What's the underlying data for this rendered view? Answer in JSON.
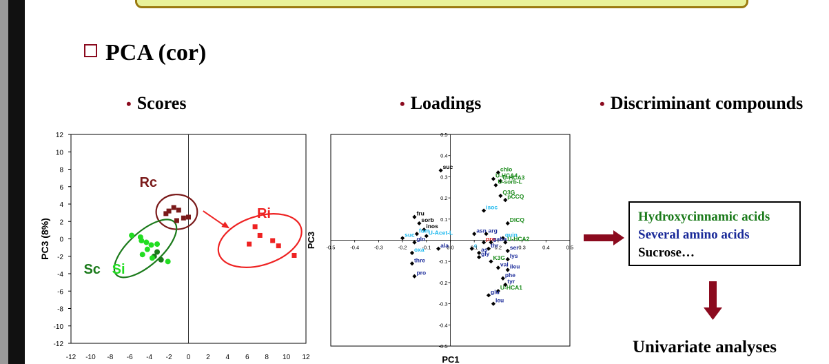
{
  "slide": {
    "title": "PCA (cor)",
    "scores_heading": "Scores",
    "loadings_heading": "Loadings",
    "discriminant_heading": "Discriminant compounds",
    "discriminant_list": [
      "Hydroxycinnamic acids",
      "Several amino acids",
      "Sucrose…"
    ],
    "univariate": "Univariate analyses"
  },
  "colors": {
    "accent": "#8b0a1e",
    "Rc": "#7a1a1a",
    "Ri": "#ee2222",
    "Sc": "#1a7a1a",
    "Si": "#22dd22",
    "hydroxycinnamic": "#1a7a1a",
    "amino": "#1a2a99",
    "loading_black": "#000000",
    "loading_cyan": "#1ab8ee",
    "loading_blue": "#1a2a99",
    "loading_green": "#1a8a1a",
    "loading_red": "#dd1111"
  },
  "chart_data": [
    {
      "type": "scatter",
      "chart": "scores",
      "xlabel": "",
      "ylabel": "PC3 (8%)",
      "xlim": [
        -12,
        12
      ],
      "ylim": [
        -12,
        12
      ],
      "xticks": [
        -12,
        -10,
        -8,
        -6,
        -4,
        -2,
        0,
        2,
        4,
        6,
        8,
        10,
        12
      ],
      "yticks": [
        -12,
        -10,
        -8,
        -6,
        -4,
        -2,
        0,
        2,
        4,
        6,
        8,
        10,
        12
      ],
      "group_labels": [
        {
          "text": "Rc",
          "x": -5,
          "y": 6,
          "color": "#7a1a1a"
        },
        {
          "text": "Ri",
          "x": 7,
          "y": 2.4,
          "color": "#ee2222"
        },
        {
          "text": "Sc",
          "x": -10.7,
          "y": -4,
          "color": "#1a7a1a"
        },
        {
          "text": "Si",
          "x": -7.8,
          "y": -4,
          "color": "#22dd22"
        }
      ],
      "series": [
        {
          "name": "Rc",
          "color": "#7a1a1a",
          "shape": "square",
          "points": [
            [
              -2,
              3.2
            ],
            [
              -1.5,
              3.6
            ],
            [
              -1,
              3.3
            ],
            [
              -0.5,
              2.4
            ],
            [
              -1.2,
              2.1
            ],
            [
              0,
              2.5
            ],
            [
              -2.3,
              2.9
            ]
          ]
        },
        {
          "name": "Ri",
          "color": "#ee2222",
          "shape": "square",
          "points": [
            [
              6.8,
              1.4
            ],
            [
              7.3,
              0.4
            ],
            [
              6.2,
              -0.6
            ],
            [
              8.6,
              -0.2
            ],
            [
              9.2,
              -0.8
            ],
            [
              10.8,
              -1.9
            ]
          ]
        },
        {
          "name": "Sc",
          "color": "#1a7a1a",
          "shape": "circle",
          "points": [
            [
              -3.5,
              -2.0
            ],
            [
              -2.8,
              -2.4
            ],
            [
              -3.2,
              -1.5
            ]
          ]
        },
        {
          "name": "Si",
          "color": "#22dd22",
          "shape": "circle",
          "points": [
            [
              -5.8,
              0.4
            ],
            [
              -4.8,
              -0.2
            ],
            [
              -4.2,
              -1.2
            ],
            [
              -3.8,
              -0.7
            ],
            [
              -3.2,
              -0.6
            ],
            [
              -4.7,
              -1.8
            ],
            [
              -3.7,
              -2.2
            ],
            [
              -2.1,
              -2.6
            ],
            [
              -4.9,
              0.2
            ],
            [
              -4.3,
              -0.4
            ]
          ]
        }
      ],
      "ellipses": [
        {
          "group": "Rc",
          "color": "#7a1a1a",
          "cx": -1.2,
          "cy": 3.1,
          "rx": 2.1,
          "ry": 2.0,
          "angle": 0
        },
        {
          "group": "Ri",
          "color": "#ee2222",
          "cx": 7.3,
          "cy": -0.2,
          "rx": 4.4,
          "ry": 2.8,
          "angle": -18
        },
        {
          "group": "Sc Si",
          "color": "#1a7a1a",
          "cx": -4.4,
          "cy": -1.1,
          "rx": 4.0,
          "ry": 1.9,
          "angle": -42
        }
      ],
      "arrow": {
        "from": [
          1.5,
          3.2
        ],
        "to": [
          4.2,
          1.2
        ],
        "color": "#ee2222"
      }
    },
    {
      "type": "scatter",
      "chart": "loadings",
      "xlabel": "PC1",
      "ylabel": "PC3",
      "xlim": [
        -0.5,
        0.5
      ],
      "ylim": [
        -0.5,
        0.5
      ],
      "xticks": [
        -0.5,
        -0.4,
        -0.3,
        -0.2,
        -0.1,
        0.0,
        0.1,
        0.2,
        0.3,
        0.4,
        0.5
      ],
      "xtick_labels": [
        "-0.5",
        "-0.4",
        "-0.3",
        "-0.2",
        "-0.1",
        "0.0",
        "0.1",
        "0.2",
        "0.3",
        "0.4",
        "0.5"
      ],
      "yticks": [
        0.5,
        0.4,
        0.3,
        0.2,
        0.1,
        -0.1,
        -0.2,
        -0.3,
        -0.4,
        -0.5
      ],
      "ytick_labels": [
        "0.5",
        "0.4",
        "0.3",
        "0.2",
        "0.1",
        "-0.1",
        "-0.2",
        "-0.3",
        "-0.4",
        "-0.5"
      ],
      "points": [
        {
          "label": "suc",
          "x": -0.04,
          "y": 0.33,
          "color": "#000000"
        },
        {
          "label": "chlo",
          "x": 0.2,
          "y": 0.32,
          "color": "#1a8a1a"
        },
        {
          "label": "U-HCA4",
          "x": 0.18,
          "y": 0.29,
          "color": "#1a8a1a"
        },
        {
          "label": "U-HCA3",
          "x": 0.21,
          "y": 0.28,
          "color": "#1a8a1a"
        },
        {
          "label": "U-sorb-L",
          "x": 0.19,
          "y": 0.26,
          "color": "#1a8a1a"
        },
        {
          "label": "Q3G",
          "x": 0.21,
          "y": 0.21,
          "color": "#1a8a1a"
        },
        {
          "label": "pCCQ",
          "x": 0.23,
          "y": 0.19,
          "color": "#1a8a1a"
        },
        {
          "label": "isoc",
          "x": 0.14,
          "y": 0.14,
          "color": "#1ab8ee"
        },
        {
          "label": "fru",
          "x": -0.15,
          "y": 0.11,
          "color": "#000000"
        },
        {
          "label": "sorb",
          "x": -0.13,
          "y": 0.08,
          "color": "#000000"
        },
        {
          "label": "inos",
          "x": -0.11,
          "y": 0.05,
          "color": "#000000"
        },
        {
          "label": "DICQ",
          "x": 0.24,
          "y": 0.08,
          "color": "#1a8a1a"
        },
        {
          "label": "fum",
          "x": -0.14,
          "y": 0.03,
          "color": "#1ab8ee"
        },
        {
          "label": "U-Acet-L",
          "x": -0.1,
          "y": 0.02,
          "color": "#1ab8ee"
        },
        {
          "label": "suc",
          "x": -0.2,
          "y": 0.01,
          "color": "#1ab8ee"
        },
        {
          "label": "asn",
          "x": 0.1,
          "y": 0.03,
          "color": "#1a2a99"
        },
        {
          "label": "arg",
          "x": 0.15,
          "y": 0.03,
          "color": "#1a2a99"
        },
        {
          "label": "quin",
          "x": 0.22,
          "y": 0.01,
          "color": "#1ab8ee"
        },
        {
          "label": "gln",
          "x": -0.15,
          "y": -0.01,
          "color": "#1a2a99"
        },
        {
          "label": "pro",
          "x": 0.14,
          "y": -0.01,
          "color": "#dd1111"
        },
        {
          "label": "gaba",
          "x": 0.17,
          "y": -0.01,
          "color": "#1a2a99"
        },
        {
          "label": "U-HCA2",
          "x": 0.23,
          "y": -0.01,
          "color": "#1a8a1a"
        },
        {
          "label": "oxa",
          "x": -0.16,
          "y": -0.06,
          "color": "#1ab8ee"
        },
        {
          "label": "ala",
          "x": -0.05,
          "y": -0.04,
          "color": "#1a2a99"
        },
        {
          "label": "c",
          "x": 0.09,
          "y": -0.04,
          "color": "#1ab8ee"
        },
        {
          "label": "thr",
          "x": 0.16,
          "y": -0.04,
          "color": "#1a2a99"
        },
        {
          "label": "ser",
          "x": 0.24,
          "y": -0.05,
          "color": "#1a2a99"
        },
        {
          "label": "as",
          "x": 0.12,
          "y": -0.06,
          "color": "#1a2a99"
        },
        {
          "label": "gly",
          "x": 0.12,
          "y": -0.08,
          "color": "#1a2a99"
        },
        {
          "label": "lys",
          "x": 0.24,
          "y": -0.09,
          "color": "#1a2a99"
        },
        {
          "label": "K3G",
          "x": 0.17,
          "y": -0.1,
          "color": "#1a8a1a"
        },
        {
          "label": "thre",
          "x": -0.16,
          "y": -0.11,
          "color": "#1a2a99"
        },
        {
          "label": "val",
          "x": 0.2,
          "y": -0.13,
          "color": "#1a2a99"
        },
        {
          "label": "ileu",
          "x": 0.24,
          "y": -0.14,
          "color": "#1a2a99"
        },
        {
          "label": "pro",
          "x": -0.15,
          "y": -0.17,
          "color": "#1a2a99"
        },
        {
          "label": "phe",
          "x": 0.22,
          "y": -0.18,
          "color": "#1a2a99"
        },
        {
          "label": "tyr",
          "x": 0.23,
          "y": -0.21,
          "color": "#1a2a99"
        },
        {
          "label": "U-HCA1",
          "x": 0.2,
          "y": -0.24,
          "color": "#1a8a1a"
        },
        {
          "label": "glu",
          "x": 0.16,
          "y": -0.26,
          "color": "#1a2a99"
        },
        {
          "label": "leu",
          "x": 0.18,
          "y": -0.3,
          "color": "#1a2a99"
        }
      ]
    }
  ]
}
